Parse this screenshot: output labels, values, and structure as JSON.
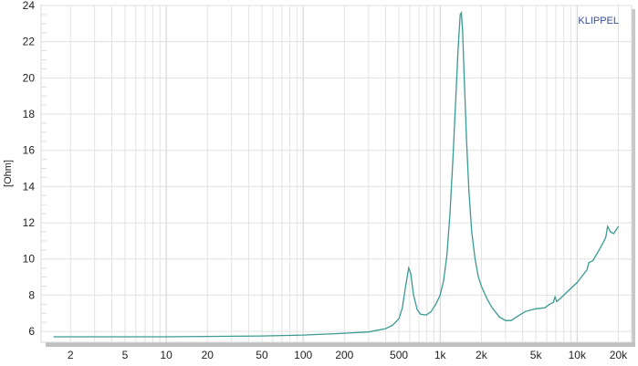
{
  "chart_data": {
    "type": "line",
    "title": "",
    "xlabel": "",
    "ylabel": "[Ohm]",
    "watermark": "KLIPPEL",
    "x_scale": "log",
    "xlim": [
      1.22,
      25000
    ],
    "ylim": [
      5.4,
      24
    ],
    "grid": true,
    "x_ticks": [
      {
        "v": 2,
        "label": "2"
      },
      {
        "v": 5,
        "label": "5"
      },
      {
        "v": 10,
        "label": "10"
      },
      {
        "v": 20,
        "label": "20"
      },
      {
        "v": 50,
        "label": "50"
      },
      {
        "v": 100,
        "label": "100"
      },
      {
        "v": 200,
        "label": "200"
      },
      {
        "v": 500,
        "label": "500"
      },
      {
        "v": 1000,
        "label": "1k"
      },
      {
        "v": 2000,
        "label": "2k"
      },
      {
        "v": 5000,
        "label": "5k"
      },
      {
        "v": 10000,
        "label": "10k"
      },
      {
        "v": 20000,
        "label": "20k"
      }
    ],
    "y_ticks": [
      6,
      8,
      10,
      12,
      14,
      16,
      18,
      20,
      22,
      24
    ],
    "line_color": "#3a9a94",
    "series": [
      {
        "x": [
          1.5,
          10,
          50,
          100,
          200,
          300,
          400,
          450,
          500,
          530,
          560,
          590,
          610,
          640,
          680,
          720,
          790,
          860,
          930,
          1000,
          1060,
          1120,
          1180,
          1240,
          1300,
          1350,
          1400,
          1430,
          1460,
          1500,
          1560,
          1620,
          1700,
          1800,
          1900,
          2000,
          2200,
          2400,
          2700,
          3000,
          3300,
          3700,
          4200,
          5000,
          5800,
          6300,
          6700,
          6900,
          7100,
          7500,
          8500,
          10000,
          11000,
          11800,
          12200,
          13000,
          14500,
          15500,
          16200,
          16700,
          17500,
          18500,
          20000
        ],
        "y": [
          5.7,
          5.7,
          5.75,
          5.8,
          5.9,
          5.97,
          6.15,
          6.35,
          6.7,
          7.3,
          8.5,
          9.5,
          9.2,
          8.0,
          7.2,
          6.95,
          6.9,
          7.1,
          7.5,
          8.0,
          8.8,
          10.2,
          12.5,
          15.5,
          18.8,
          21.5,
          23.5,
          23.6,
          22.5,
          20.0,
          16.5,
          13.8,
          11.5,
          10.0,
          9.0,
          8.5,
          7.8,
          7.3,
          6.8,
          6.6,
          6.6,
          6.85,
          7.1,
          7.25,
          7.3,
          7.5,
          7.6,
          7.9,
          7.65,
          7.8,
          8.2,
          8.7,
          9.1,
          9.4,
          9.8,
          9.9,
          10.5,
          10.9,
          11.2,
          11.8,
          11.5,
          11.4,
          11.8
        ]
      }
    ]
  }
}
